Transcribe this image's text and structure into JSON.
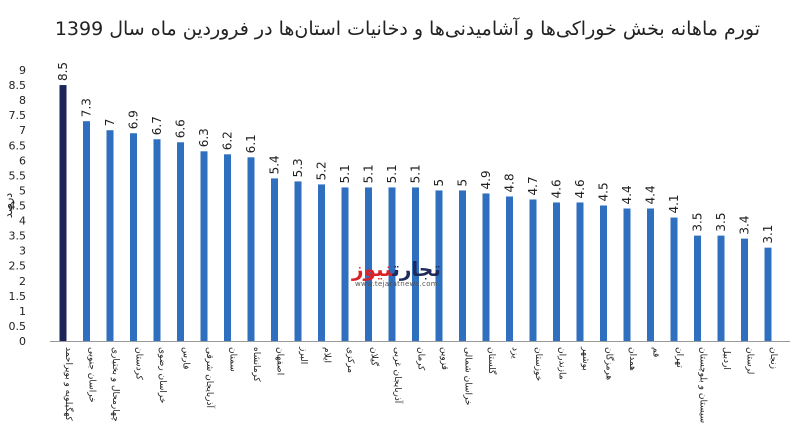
{
  "chart_data": {
    "type": "bar",
    "title": "تورم ماهانه بخش خوراکی‌ها و آشامیدنی‌ها و دخانیات استان‌ها در فروردین ماه سال 1399",
    "ylabel": "درصد",
    "xlabel": "",
    "ylim": [
      0,
      9
    ],
    "yticks": [
      "0",
      "0.5",
      "1",
      "1.5",
      "2",
      "2.5",
      "3",
      "3.5",
      "4",
      "4.5",
      "5",
      "5.5",
      "6",
      "6.5",
      "7",
      "7.5",
      "8",
      "8.5",
      "9"
    ],
    "grid": false,
    "categories": [
      "کهگیلویه و بویراحمد",
      "خراسان جنوبی",
      "چهارمحال و بختیاری",
      "کردستان",
      "خراسان رضوی",
      "فارس",
      "آذربایجان شرقی",
      "سمنان",
      "کرمانشاه",
      "اصفهان",
      "البرز",
      "ایلام",
      "مرکزی",
      "گیلان",
      "آذربایجان غربی",
      "کرمان",
      "قزوین",
      "خراسان شمالی",
      "گلستان",
      "یزد",
      "خوزستان",
      "مازندران",
      "بوشهر",
      "هرمزگان",
      "همدان",
      "قم",
      "تهران",
      "سیستان و بلوچستان",
      "اردبیل",
      "لرستان",
      "زنجان"
    ],
    "values": [
      8.5,
      7.3,
      7,
      6.9,
      6.7,
      6.6,
      6.3,
      6.2,
      6.1,
      5.4,
      5.3,
      5.2,
      5.1,
      5.1,
      5.1,
      5.1,
      5,
      5,
      4.9,
      4.8,
      4.7,
      4.6,
      4.6,
      4.5,
      4.4,
      4.4,
      4.1,
      3.5,
      3.5,
      3.4,
      3.1
    ],
    "value_labels": [
      "8.5",
      "7.3",
      "7",
      "6.9",
      "6.7",
      "6.6",
      "6.3",
      "6.2",
      "6.1",
      "5.4",
      "5.3",
      "5.2",
      "5.1",
      "5.1",
      "5.1",
      "5.1",
      "5",
      "5",
      "4.9",
      "4.8",
      "4.7",
      "4.6",
      "4.6",
      "4.5",
      "4.4",
      "4.4",
      "4.1",
      "3.5",
      "3.5",
      "3.4",
      "3.1"
    ],
    "colors": {
      "highlight": "#1b2559",
      "bar": "#2f6fbf",
      "axis": "#999999",
      "text": "#222222"
    }
  },
  "watermark": {
    "brand_main": "تجارت",
    "brand_accent": "نیوز",
    "site": "www.tejaratnews.com"
  }
}
